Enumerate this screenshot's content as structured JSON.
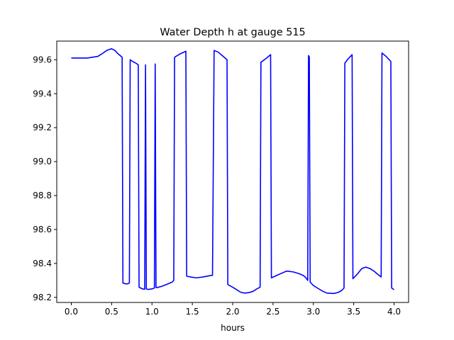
{
  "chart_data": {
    "type": "line",
    "title": "Water Depth h at gauge 515",
    "xlabel": "hours",
    "ylabel": "",
    "xlim": [
      -0.18,
      4.18
    ],
    "ylim": [
      98.17,
      99.71
    ],
    "xticks": [
      0.0,
      0.5,
      1.0,
      1.5,
      2.0,
      2.5,
      3.0,
      3.5,
      4.0
    ],
    "xtick_labels": [
      "0.0",
      "0.5",
      "1.0",
      "1.5",
      "2.0",
      "2.5",
      "3.0",
      "3.5",
      "4.0"
    ],
    "yticks": [
      98.2,
      98.4,
      98.6,
      98.8,
      99.0,
      99.2,
      99.4,
      99.6
    ],
    "ytick_labels": [
      "98.2",
      "98.4",
      "98.6",
      "98.8",
      "99.0",
      "99.2",
      "99.4",
      "99.6"
    ],
    "grid": false,
    "series": [
      {
        "color": "#0000ff",
        "x": [
          0.0,
          0.1,
          0.2,
          0.33,
          0.38,
          0.44,
          0.5,
          0.54,
          0.58,
          0.63,
          0.64,
          0.67,
          0.7,
          0.72,
          0.73,
          0.76,
          0.8,
          0.83,
          0.84,
          0.86,
          0.88,
          0.91,
          0.92,
          0.93,
          0.94,
          0.96,
          1.0,
          1.03,
          1.04,
          1.05,
          1.06,
          1.1,
          1.15,
          1.2,
          1.25,
          1.27,
          1.28,
          1.35,
          1.42,
          1.43,
          1.48,
          1.55,
          1.63,
          1.74,
          1.75,
          1.77,
          1.82,
          1.87,
          1.93,
          1.94,
          2.0,
          2.05,
          2.1,
          2.15,
          2.2,
          2.25,
          2.3,
          2.34,
          2.35,
          2.42,
          2.47,
          2.48,
          2.55,
          2.62,
          2.67,
          2.75,
          2.82,
          2.87,
          2.9,
          2.93,
          2.94,
          2.95,
          2.96,
          3.0,
          3.05,
          3.12,
          3.17,
          3.25,
          3.3,
          3.35,
          3.38,
          3.39,
          3.43,
          3.48,
          3.49,
          3.55,
          3.6,
          3.65,
          3.7,
          3.75,
          3.8,
          3.84,
          3.85,
          3.9,
          3.96,
          3.97,
          4.0
        ],
        "y": [
          99.61,
          99.61,
          99.61,
          99.62,
          99.635,
          99.655,
          99.665,
          99.655,
          99.635,
          99.615,
          98.285,
          98.28,
          98.28,
          98.285,
          99.6,
          99.59,
          99.58,
          99.57,
          98.26,
          98.255,
          98.25,
          98.248,
          99.57,
          98.25,
          98.248,
          98.247,
          98.25,
          98.255,
          99.575,
          98.258,
          98.258,
          98.262,
          98.27,
          98.28,
          98.29,
          98.3,
          99.615,
          99.635,
          99.65,
          98.325,
          98.32,
          98.315,
          98.32,
          98.33,
          98.33,
          99.655,
          99.645,
          99.625,
          99.6,
          98.275,
          98.26,
          98.245,
          98.23,
          98.225,
          98.228,
          98.235,
          98.25,
          98.26,
          99.585,
          99.61,
          99.63,
          98.315,
          98.33,
          98.345,
          98.355,
          98.35,
          98.34,
          98.33,
          98.32,
          98.3,
          99.625,
          99.615,
          98.29,
          98.27,
          98.255,
          98.235,
          98.225,
          98.223,
          98.228,
          98.24,
          98.255,
          99.58,
          99.605,
          99.63,
          98.31,
          98.34,
          98.37,
          98.378,
          98.37,
          98.355,
          98.335,
          98.32,
          99.64,
          99.62,
          99.59,
          98.255,
          98.245
        ]
      }
    ]
  }
}
